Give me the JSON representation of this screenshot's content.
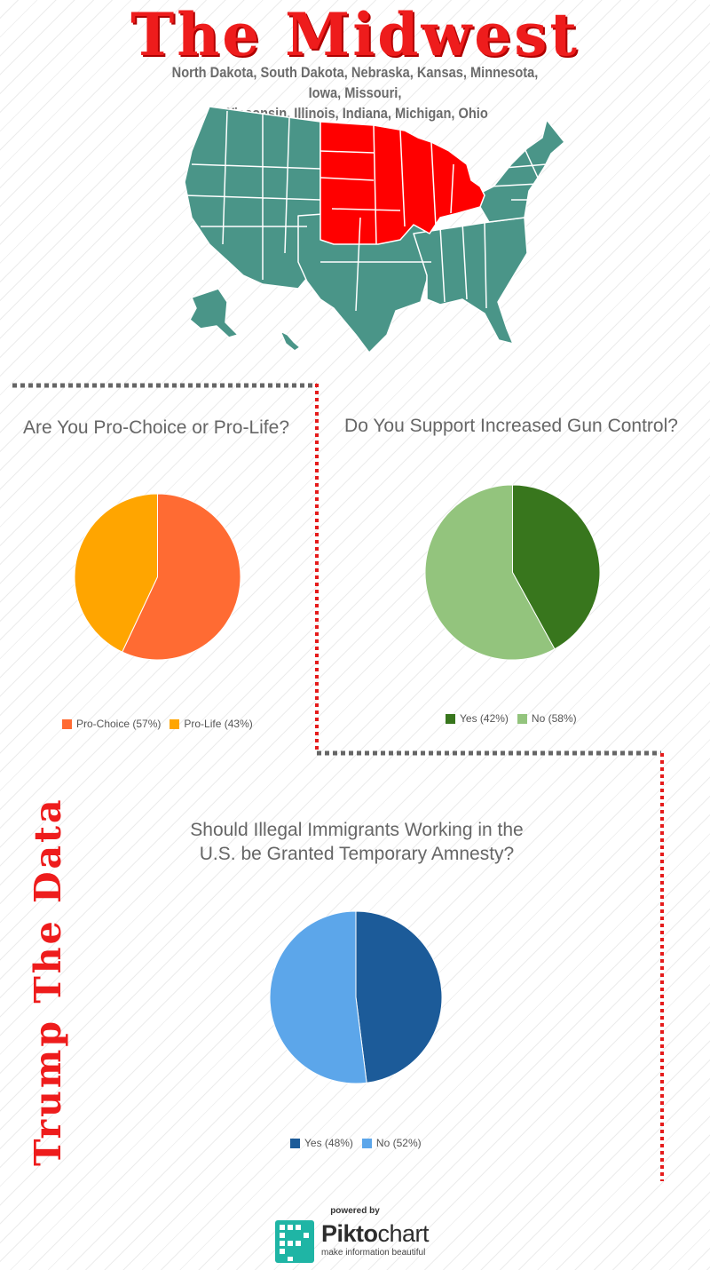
{
  "header": {
    "title": "The Midwest",
    "subtitle_line1": "North Dakota, South Dakota, Nebraska, Kansas, Minnesota, Iowa, Missouri,",
    "subtitle_line2": "Wisconsin, Illinois, Indiana, Michigan, Ohio"
  },
  "map": {
    "icon": "us-map-icon",
    "base_color": "#4a9588",
    "highlight_color": "#ff0000",
    "highlighted_states": [
      "North Dakota",
      "South Dakota",
      "Nebraska",
      "Kansas",
      "Minnesota",
      "Iowa",
      "Missouri",
      "Wisconsin",
      "Illinois",
      "Indiana",
      "Michigan",
      "Ohio"
    ]
  },
  "side_title": "Trump The Data",
  "colors": {
    "accent": "#ee1c1c",
    "divider_gray": "#666666",
    "divider_red": "#e51b1b"
  },
  "chart_data": [
    {
      "type": "pie",
      "title": "Are You Pro-Choice or Pro-Life?",
      "categories": [
        "Pro-Choice",
        "Pro-Life"
      ],
      "values": [
        57,
        43
      ],
      "legend_labels": [
        "Pro-Choice (57%)",
        "Pro-Life (43%)"
      ],
      "colors": [
        "#ff6b33",
        "#ffa500"
      ],
      "legend": "bottom"
    },
    {
      "type": "pie",
      "title": "Do You Support Increased Gun Control?",
      "categories": [
        "Yes",
        "No"
      ],
      "values": [
        42,
        58
      ],
      "legend_labels": [
        "Yes (42%)",
        "No (58%)"
      ],
      "colors": [
        "#38761d",
        "#93c47d"
      ],
      "legend": "bottom"
    },
    {
      "type": "pie",
      "title_line1": "Should Illegal Immigrants Working in the",
      "title_line2": "U.S. be Granted Temporary Amnesty?",
      "categories": [
        "Yes",
        "No"
      ],
      "values": [
        48,
        52
      ],
      "legend_labels": [
        "Yes (48%)",
        "No (52%)"
      ],
      "colors": [
        "#1c5b99",
        "#5ca6ea"
      ],
      "legend": "bottom"
    }
  ],
  "footer": {
    "powered_by": "powered by",
    "brand_piece1": "Pikto",
    "brand_piece2": "chart",
    "tagline": "make information beautiful",
    "logo_icon": "piktochart-logo-icon"
  }
}
